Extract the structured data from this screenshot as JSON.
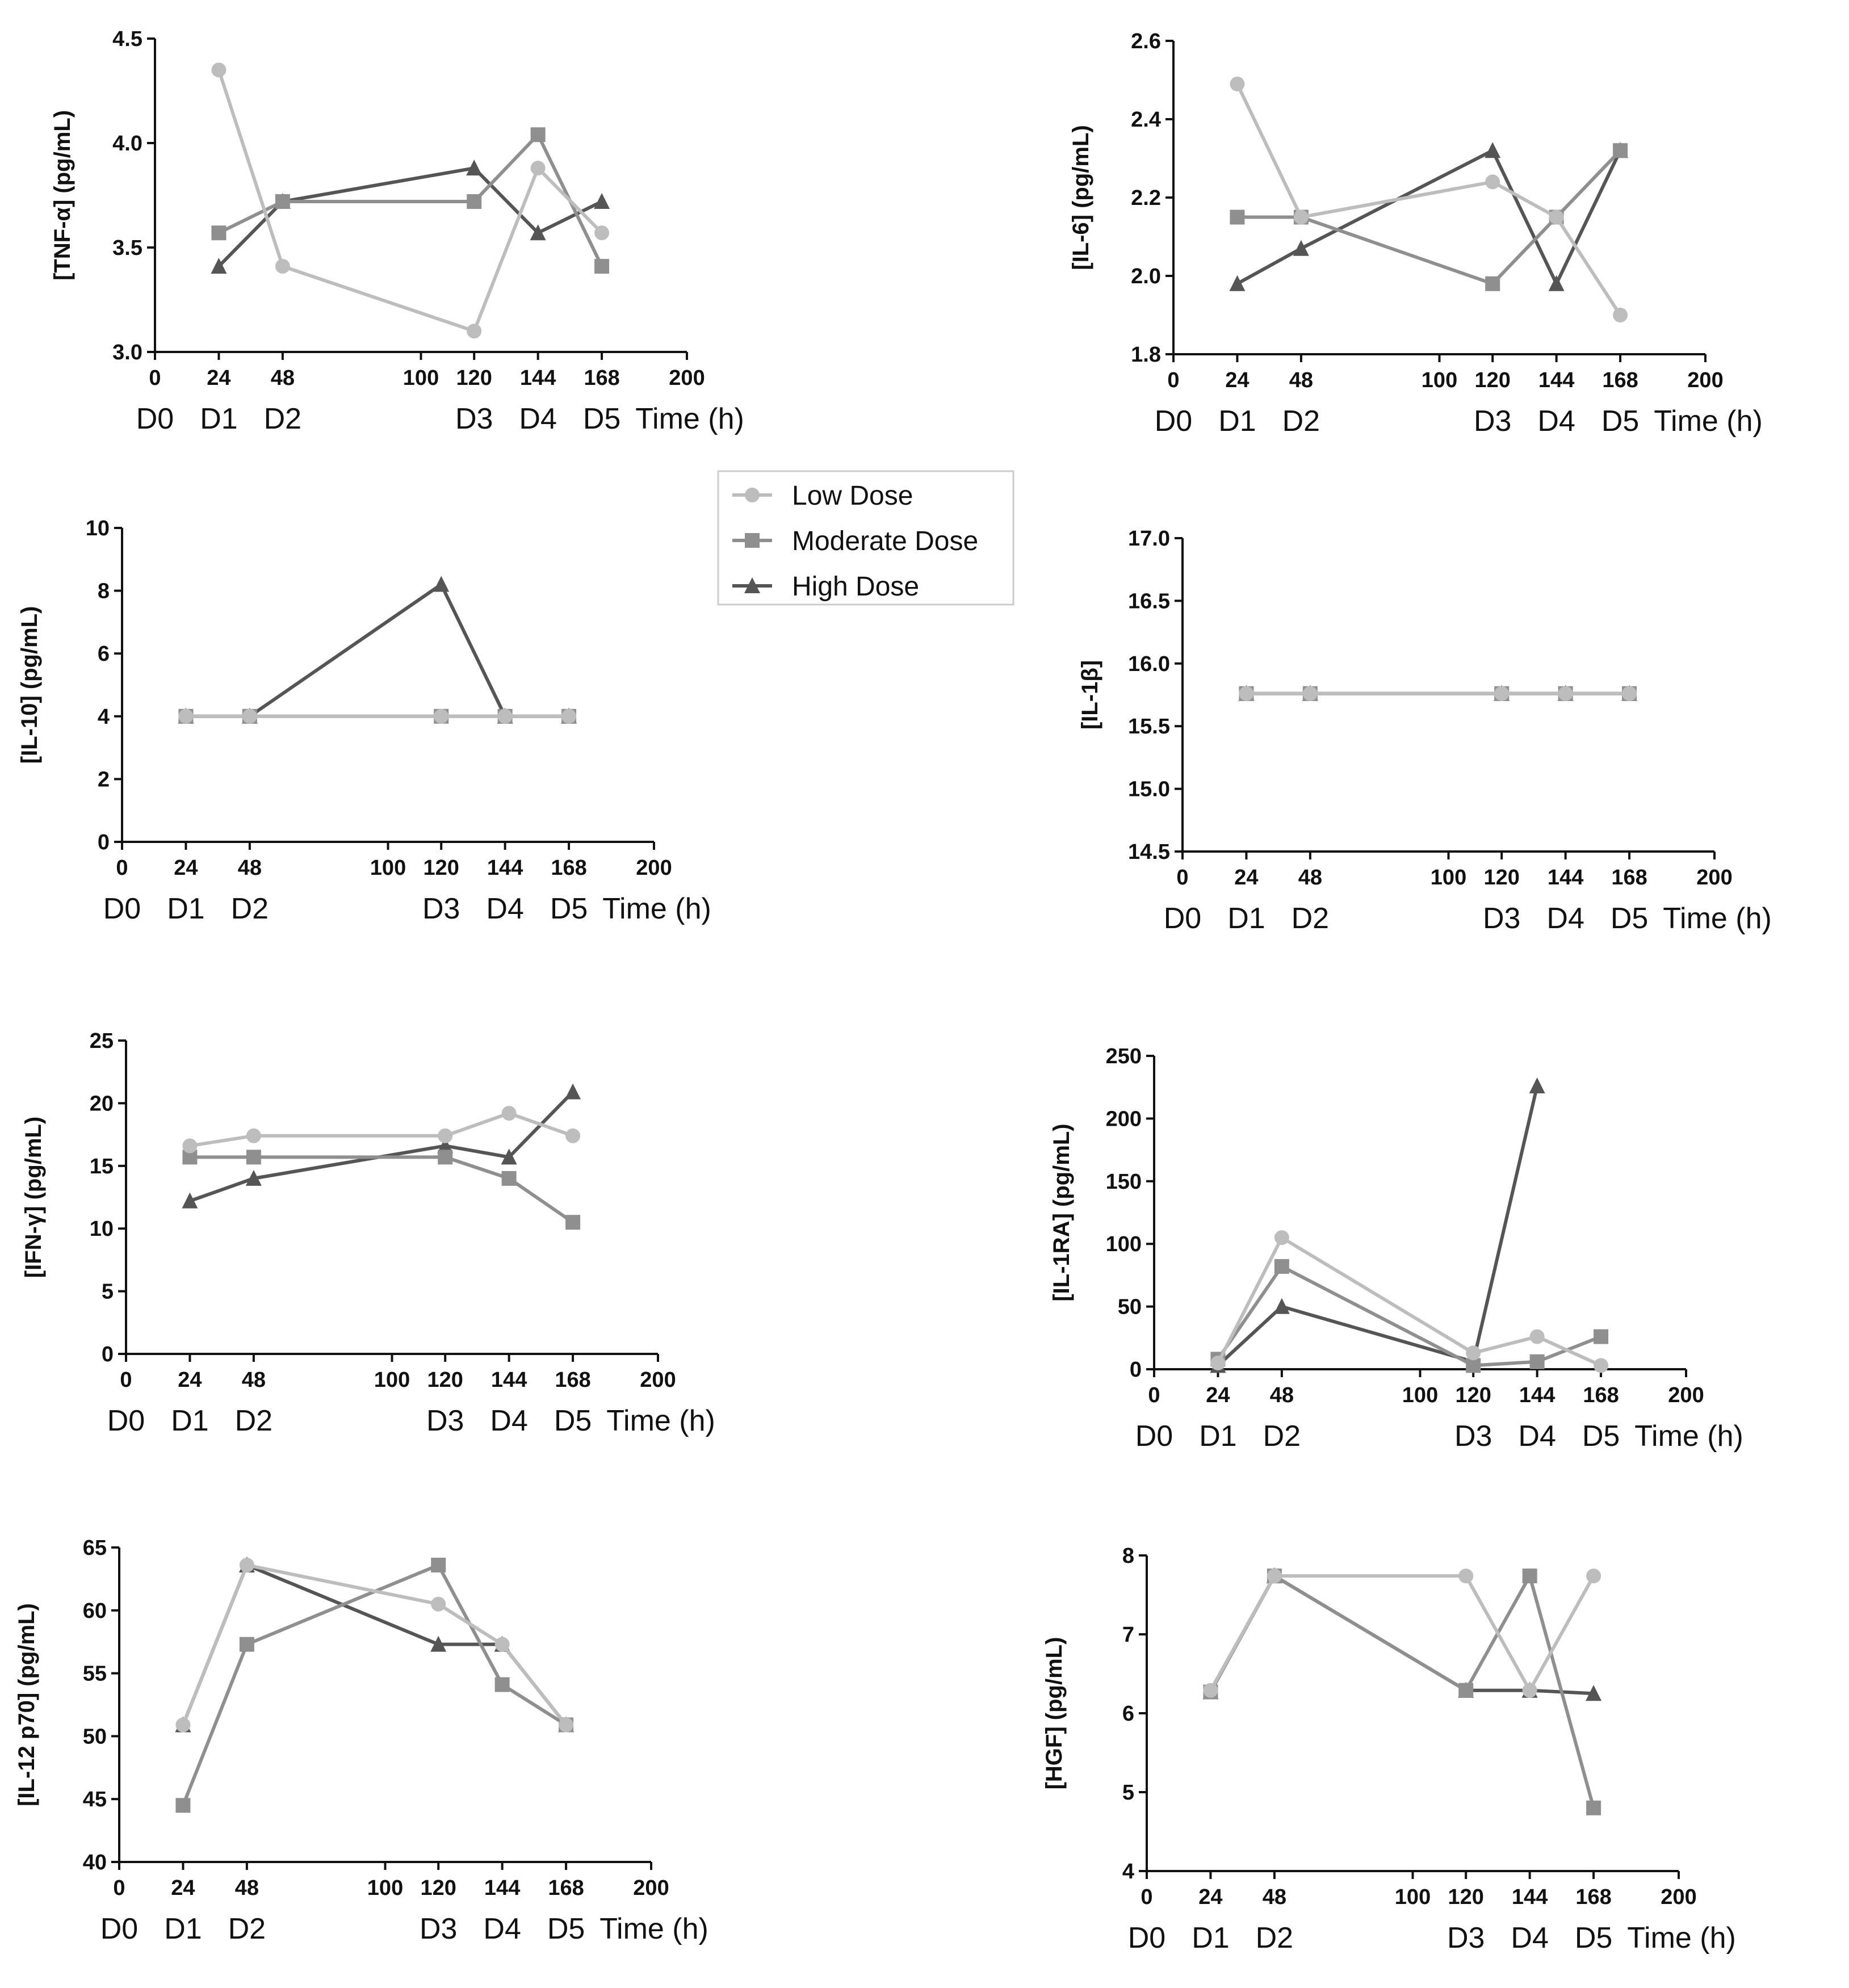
{
  "legend": [
    {
      "name": "Low Dose",
      "color": "#bdbdbd",
      "marker": "circle"
    },
    {
      "name": "Moderate Dose",
      "color": "#8f8f8f",
      "marker": "square"
    },
    {
      "name": "High Dose",
      "color": "#555555",
      "marker": "triangle"
    }
  ],
  "chart_data": [
    {
      "type": "line",
      "id": "tnf",
      "ylabel": "[TNF-α] (pg/mL)",
      "xlabel": "Time (h)",
      "xlim": [
        0,
        200
      ],
      "ylim": [
        3.0,
        4.5
      ],
      "yticks": [
        "3.0",
        "3.5",
        "4.0",
        "4.5"
      ],
      "xticks": [
        "0",
        "24",
        "48",
        "100",
        "120",
        "144",
        "168",
        "200"
      ],
      "day_labels": [
        "D0",
        "D1",
        "D2",
        "D3",
        "D4",
        "D5"
      ],
      "series": [
        {
          "name": "Low Dose",
          "x": [
            24,
            48,
            120,
            144,
            168
          ],
          "y": [
            4.35,
            3.41,
            3.1,
            3.88,
            3.57
          ]
        },
        {
          "name": "Moderate Dose",
          "x": [
            24,
            48,
            120,
            144,
            168
          ],
          "y": [
            3.57,
            3.72,
            3.72,
            4.04,
            3.41
          ]
        },
        {
          "name": "High Dose",
          "x": [
            24,
            48,
            120,
            144,
            168
          ],
          "y": [
            3.41,
            3.72,
            3.88,
            3.57,
            3.72
          ]
        }
      ]
    },
    {
      "type": "line",
      "id": "il6",
      "ylabel": "[IL-6] (pg/mL)",
      "xlabel": "Time (h)",
      "xlim": [
        0,
        200
      ],
      "ylim": [
        1.8,
        2.6
      ],
      "yticks": [
        "1.8",
        "2.0",
        "2.2",
        "2.4",
        "2.6"
      ],
      "xticks": [
        "0",
        "24",
        "48",
        "100",
        "120",
        "144",
        "168",
        "200"
      ],
      "day_labels": [
        "D0",
        "D1",
        "D2",
        "D3",
        "D4",
        "D5"
      ],
      "series": [
        {
          "name": "Low Dose",
          "x": [
            24,
            48,
            120,
            144,
            168
          ],
          "y": [
            2.49,
            2.15,
            2.24,
            2.15,
            1.9
          ]
        },
        {
          "name": "Moderate Dose",
          "x": [
            24,
            48,
            120,
            144,
            168
          ],
          "y": [
            2.15,
            2.15,
            1.98,
            2.15,
            2.32
          ]
        },
        {
          "name": "High Dose",
          "x": [
            24,
            48,
            120,
            144,
            168
          ],
          "y": [
            1.98,
            2.07,
            2.32,
            1.98,
            2.32
          ]
        }
      ]
    },
    {
      "type": "line",
      "id": "il10",
      "ylabel": "[IL-10] (pg/mL)",
      "xlabel": "Time (h)",
      "xlim": [
        0,
        200
      ],
      "ylim": [
        0,
        10
      ],
      "yticks": [
        "0",
        "2",
        "4",
        "6",
        "8",
        "10"
      ],
      "xticks": [
        "0",
        "24",
        "48",
        "100",
        "120",
        "144",
        "168",
        "200"
      ],
      "day_labels": [
        "D0",
        "D1",
        "D2",
        "D3",
        "D4",
        "D5"
      ],
      "series": [
        {
          "name": "Low Dose",
          "x": [
            24,
            48,
            120,
            144,
            168
          ],
          "y": [
            4.0,
            4.0,
            4.0,
            4.0,
            4.0
          ]
        },
        {
          "name": "Moderate Dose",
          "x": [
            24,
            48,
            120,
            144,
            168
          ],
          "y": [
            4.0,
            4.0,
            4.0,
            4.0,
            4.0
          ]
        },
        {
          "name": "High Dose",
          "x": [
            24,
            48,
            120,
            144,
            168
          ],
          "y": [
            4.0,
            4.0,
            8.2,
            4.0,
            4.0
          ]
        }
      ]
    },
    {
      "type": "line",
      "id": "il1b",
      "ylabel": "[IL-1β]",
      "xlabel": "Time (h)",
      "xlim": [
        0,
        200
      ],
      "ylim": [
        14.5,
        17.0
      ],
      "yticks": [
        "14.5",
        "15.0",
        "15.5",
        "16.0",
        "16.5",
        "17.0"
      ],
      "xticks": [
        "0",
        "24",
        "48",
        "100",
        "120",
        "144",
        "168",
        "200"
      ],
      "day_labels": [
        "D0",
        "D1",
        "D2",
        "D3",
        "D4",
        "D5"
      ],
      "series": [
        {
          "name": "Low Dose",
          "x": [
            24,
            48,
            120,
            144,
            168
          ],
          "y": [
            15.76,
            15.76,
            15.76,
            15.76,
            15.76
          ]
        },
        {
          "name": "Moderate Dose",
          "x": [
            24,
            48,
            120,
            144,
            168
          ],
          "y": [
            15.76,
            15.76,
            15.76,
            15.76,
            15.76
          ]
        },
        {
          "name": "High Dose",
          "x": [
            24,
            48,
            120,
            144,
            168
          ],
          "y": [
            15.76,
            15.76,
            15.76,
            15.76,
            15.76
          ]
        }
      ]
    },
    {
      "type": "line",
      "id": "ifng",
      "ylabel": "[IFN-γ] (pg/mL)",
      "xlabel": "Time (h)",
      "xlim": [
        0,
        200
      ],
      "ylim": [
        0,
        25
      ],
      "yticks": [
        "0",
        "5",
        "10",
        "15",
        "20",
        "25"
      ],
      "xticks": [
        "0",
        "24",
        "48",
        "100",
        "120",
        "144",
        "168",
        "200"
      ],
      "day_labels": [
        "D0",
        "D1",
        "D2",
        "D3",
        "D4",
        "D5"
      ],
      "series": [
        {
          "name": "Low Dose",
          "x": [
            24,
            48,
            120,
            144,
            168
          ],
          "y": [
            16.6,
            17.4,
            17.4,
            19.2,
            17.4
          ]
        },
        {
          "name": "Moderate Dose",
          "x": [
            24,
            48,
            120,
            144,
            168
          ],
          "y": [
            15.7,
            15.7,
            15.7,
            14.0,
            10.5
          ]
        },
        {
          "name": "High Dose",
          "x": [
            24,
            48,
            120,
            144,
            168
          ],
          "y": [
            12.2,
            14.0,
            16.6,
            15.7,
            20.9
          ]
        }
      ]
    },
    {
      "type": "line",
      "id": "il1ra",
      "ylabel": "[IL-1RA] (pg/mL)",
      "xlabel": "Time (h)",
      "xlim": [
        0,
        200
      ],
      "ylim": [
        0,
        250
      ],
      "yticks": [
        "0",
        "50",
        "100",
        "150",
        "200",
        "250"
      ],
      "xticks": [
        "0",
        "24",
        "48",
        "100",
        "120",
        "144",
        "168",
        "200"
      ],
      "day_labels": [
        "D0",
        "D1",
        "D2",
        "D3",
        "D4",
        "D5"
      ],
      "series": [
        {
          "name": "Low Dose",
          "x": [
            24,
            48,
            120,
            144,
            168
          ],
          "y": [
            5,
            105,
            13,
            26,
            3
          ]
        },
        {
          "name": "Moderate Dose",
          "x": [
            24,
            48,
            120,
            144,
            168
          ],
          "y": [
            8,
            82,
            3,
            6,
            26
          ]
        },
        {
          "name": "High Dose",
          "x": [
            24,
            48,
            120,
            144
          ],
          "y": [
            3,
            50,
            6,
            226
          ]
        }
      ]
    },
    {
      "type": "line",
      "id": "il12",
      "ylabel": "[IL-12 p70] (pg/mL)",
      "xlabel": "Time (h)",
      "xlim": [
        0,
        200
      ],
      "ylim": [
        40,
        65
      ],
      "yticks": [
        "40",
        "45",
        "50",
        "55",
        "60",
        "65"
      ],
      "xticks": [
        "0",
        "24",
        "48",
        "100",
        "120",
        "144",
        "168",
        "200"
      ],
      "day_labels": [
        "D0",
        "D1",
        "D2",
        "D3",
        "D4",
        "D5"
      ],
      "series": [
        {
          "name": "Low Dose",
          "x": [
            24,
            48,
            120,
            144,
            168
          ],
          "y": [
            50.9,
            63.6,
            60.5,
            57.3,
            50.9
          ]
        },
        {
          "name": "Moderate Dose",
          "x": [
            24,
            48,
            120,
            144,
            168
          ],
          "y": [
            44.5,
            57.3,
            63.6,
            54.1,
            50.9
          ]
        },
        {
          "name": "High Dose",
          "x": [
            24,
            48,
            120,
            144,
            168
          ],
          "y": [
            50.9,
            63.6,
            57.3,
            57.3,
            50.9
          ]
        }
      ]
    },
    {
      "type": "line",
      "id": "hgf",
      "ylabel": "[HGF] (pg/mL)",
      "xlabel": "Time (h)",
      "xlim": [
        0,
        200
      ],
      "ylim": [
        4,
        8
      ],
      "yticks": [
        "4",
        "5",
        "6",
        "7",
        "8"
      ],
      "xticks": [
        "0",
        "24",
        "48",
        "100",
        "120",
        "144",
        "168",
        "200"
      ],
      "day_labels": [
        "D0",
        "D1",
        "D2",
        "D3",
        "D4",
        "D5"
      ],
      "series": [
        {
          "name": "Low Dose",
          "x": [
            24,
            48,
            120,
            144,
            168
          ],
          "y": [
            6.29,
            7.74,
            7.74,
            6.29,
            7.74
          ]
        },
        {
          "name": "Moderate Dose",
          "x": [
            24,
            48,
            120,
            144,
            168
          ],
          "y": [
            6.27,
            7.74,
            6.29,
            7.74,
            4.8
          ]
        },
        {
          "name": "High Dose",
          "x": [
            24,
            48,
            120,
            144,
            168
          ],
          "y": [
            6.27,
            7.74,
            6.29,
            6.29,
            6.25
          ]
        }
      ]
    }
  ]
}
